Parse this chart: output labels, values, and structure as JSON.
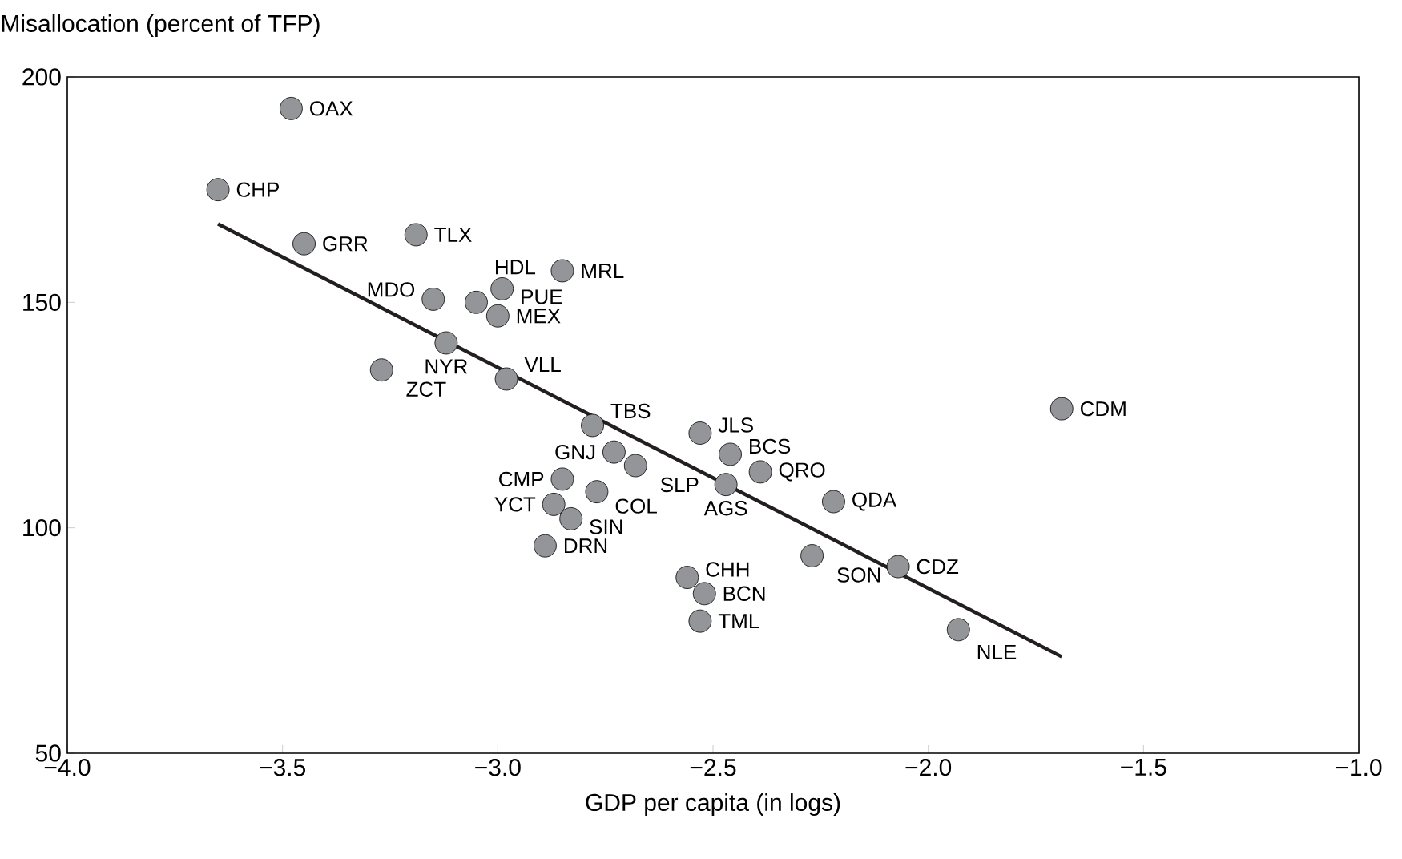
{
  "chart_data": {
    "type": "scatter",
    "ylabel": "Misallocation (percent of TFP)",
    "xlabel": "GDP per capita (in logs)",
    "xlim": [
      -4.0,
      -1.0
    ],
    "ylim": [
      50,
      200
    ],
    "xticks": [
      {
        "value": -4.0,
        "label": "−4.0"
      },
      {
        "value": -3.5,
        "label": "−3.5"
      },
      {
        "value": -3.0,
        "label": "−3.0"
      },
      {
        "value": -2.5,
        "label": "−2.5"
      },
      {
        "value": -2.0,
        "label": "−2.0"
      },
      {
        "value": -1.5,
        "label": "−1.5"
      },
      {
        "value": -1.0,
        "label": "−1.0"
      }
    ],
    "yticks": [
      50,
      100,
      150,
      200
    ],
    "grid": false,
    "series": [
      {
        "marker": "circle",
        "color": "#939598",
        "x": [
          -3.48,
          -3.65,
          -3.45,
          -3.19,
          -3.15,
          -3.05,
          -2.99,
          -3.0,
          -2.85,
          -3.12,
          -3.27,
          -2.98,
          -2.78,
          -2.53,
          -2.73,
          -2.46,
          -2.68,
          -2.85,
          -2.39,
          -2.47,
          -2.77,
          -2.87,
          -2.83,
          -2.22,
          -2.89,
          -2.27,
          -2.56,
          -2.52,
          -2.53,
          -1.69,
          -2.07,
          -1.93
        ],
        "values": [
          193,
          175,
          163,
          165,
          150.7,
          150,
          153,
          147,
          157,
          141,
          135,
          133,
          122.7,
          121,
          116.8,
          116.3,
          113.8,
          110.8,
          112.4,
          109.6,
          108,
          105.2,
          102,
          105.8,
          96,
          93.8,
          89,
          85.4,
          79.3,
          126.4,
          91.4,
          77.4
        ]
      },
      {
        "type": "line",
        "marker": "none",
        "color": "#231f20",
        "x": [
          -3.65,
          -1.69
        ],
        "values": [
          167.4,
          71.4
        ]
      }
    ],
    "annotations": [
      {
        "text": "OAX",
        "x": -3.48,
        "y": 193
      },
      {
        "text": "CHP",
        "x": -3.65,
        "y": 175
      },
      {
        "text": "GRR",
        "x": -3.45,
        "y": 163
      },
      {
        "text": "TLX",
        "x": -3.19,
        "y": 165
      },
      {
        "text": "MDO",
        "x": -3.15,
        "y": 150.7
      },
      {
        "text": "HDL",
        "x": -3.05,
        "y": 150
      },
      {
        "text": "PUE",
        "x": -2.99,
        "y": 153
      },
      {
        "text": "MEX",
        "x": -3.0,
        "y": 147
      },
      {
        "text": "MRL",
        "x": -2.85,
        "y": 157
      },
      {
        "text": "NYR",
        "x": -3.12,
        "y": 141
      },
      {
        "text": "ZCT",
        "x": -3.27,
        "y": 135
      },
      {
        "text": "VLL",
        "x": -2.98,
        "y": 133
      },
      {
        "text": "TBS",
        "x": -2.78,
        "y": 122.7
      },
      {
        "text": "JLS",
        "x": -2.53,
        "y": 121
      },
      {
        "text": "GNJ",
        "x": -2.73,
        "y": 116.8
      },
      {
        "text": "BCS",
        "x": -2.46,
        "y": 116.3
      },
      {
        "text": "SLP",
        "x": -2.68,
        "y": 113.8
      },
      {
        "text": "CMP",
        "x": -2.85,
        "y": 110.8
      },
      {
        "text": "QRO",
        "x": -2.39,
        "y": 112.4
      },
      {
        "text": "AGS",
        "x": -2.47,
        "y": 109.6
      },
      {
        "text": "COL",
        "x": -2.77,
        "y": 108
      },
      {
        "text": "YCT",
        "x": -2.87,
        "y": 105.2
      },
      {
        "text": "SIN",
        "x": -2.83,
        "y": 102
      },
      {
        "text": "QDA",
        "x": -2.22,
        "y": 105.8
      },
      {
        "text": "DRN",
        "x": -2.89,
        "y": 96
      },
      {
        "text": "SON",
        "x": -2.27,
        "y": 93.8
      },
      {
        "text": "CHH",
        "x": -2.56,
        "y": 89
      },
      {
        "text": "BCN",
        "x": -2.52,
        "y": 85.4
      },
      {
        "text": "TML",
        "x": -2.53,
        "y": 79.3
      },
      {
        "text": "CDM",
        "x": -1.69,
        "y": 126.4
      },
      {
        "text": "CDZ",
        "x": -2.07,
        "y": 91.4
      },
      {
        "text": "NLE",
        "x": -1.93,
        "y": 77.4
      }
    ]
  }
}
